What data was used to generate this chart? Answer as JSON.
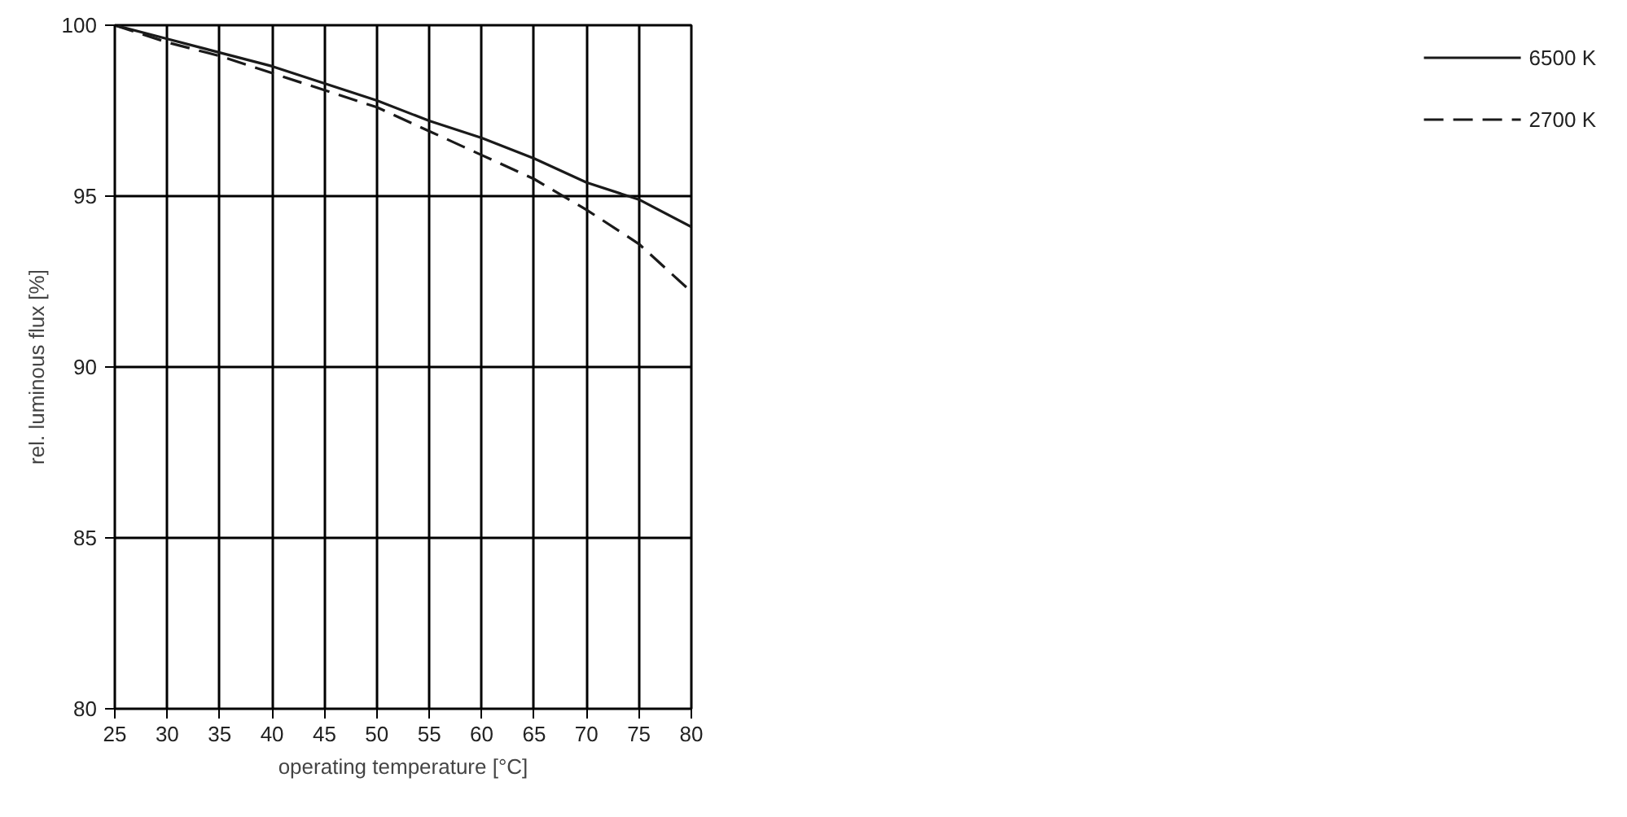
{
  "chart_data": {
    "type": "line",
    "xlabel": "operating temperature [°C]",
    "ylabel": "rel. luminous flux [%]",
    "x": [
      25,
      30,
      35,
      40,
      45,
      50,
      55,
      60,
      65,
      70,
      75,
      80
    ],
    "series": [
      {
        "name": "6500 K",
        "color": "#1a1a1a",
        "line_style": "solid",
        "values": [
          100,
          99.6,
          99.2,
          98.8,
          98.3,
          97.8,
          97.2,
          96.7,
          96.1,
          95.4,
          94.9,
          94.1
        ]
      },
      {
        "name": "2700 K",
        "color": "#1a1a1a",
        "line_style": "dashed",
        "values": [
          100,
          99.5,
          99.1,
          98.6,
          98.1,
          97.6,
          96.9,
          96.2,
          95.5,
          94.6,
          93.6,
          92.2
        ]
      }
    ],
    "xlim": [
      25,
      80
    ],
    "xticks": [
      25,
      30,
      35,
      40,
      45,
      50,
      55,
      60,
      65,
      70,
      75,
      80
    ],
    "ylim": [
      80,
      100
    ],
    "yticks": [
      80,
      85,
      90,
      95,
      100
    ],
    "grid": true,
    "legend": "right",
    "marker": "none"
  }
}
